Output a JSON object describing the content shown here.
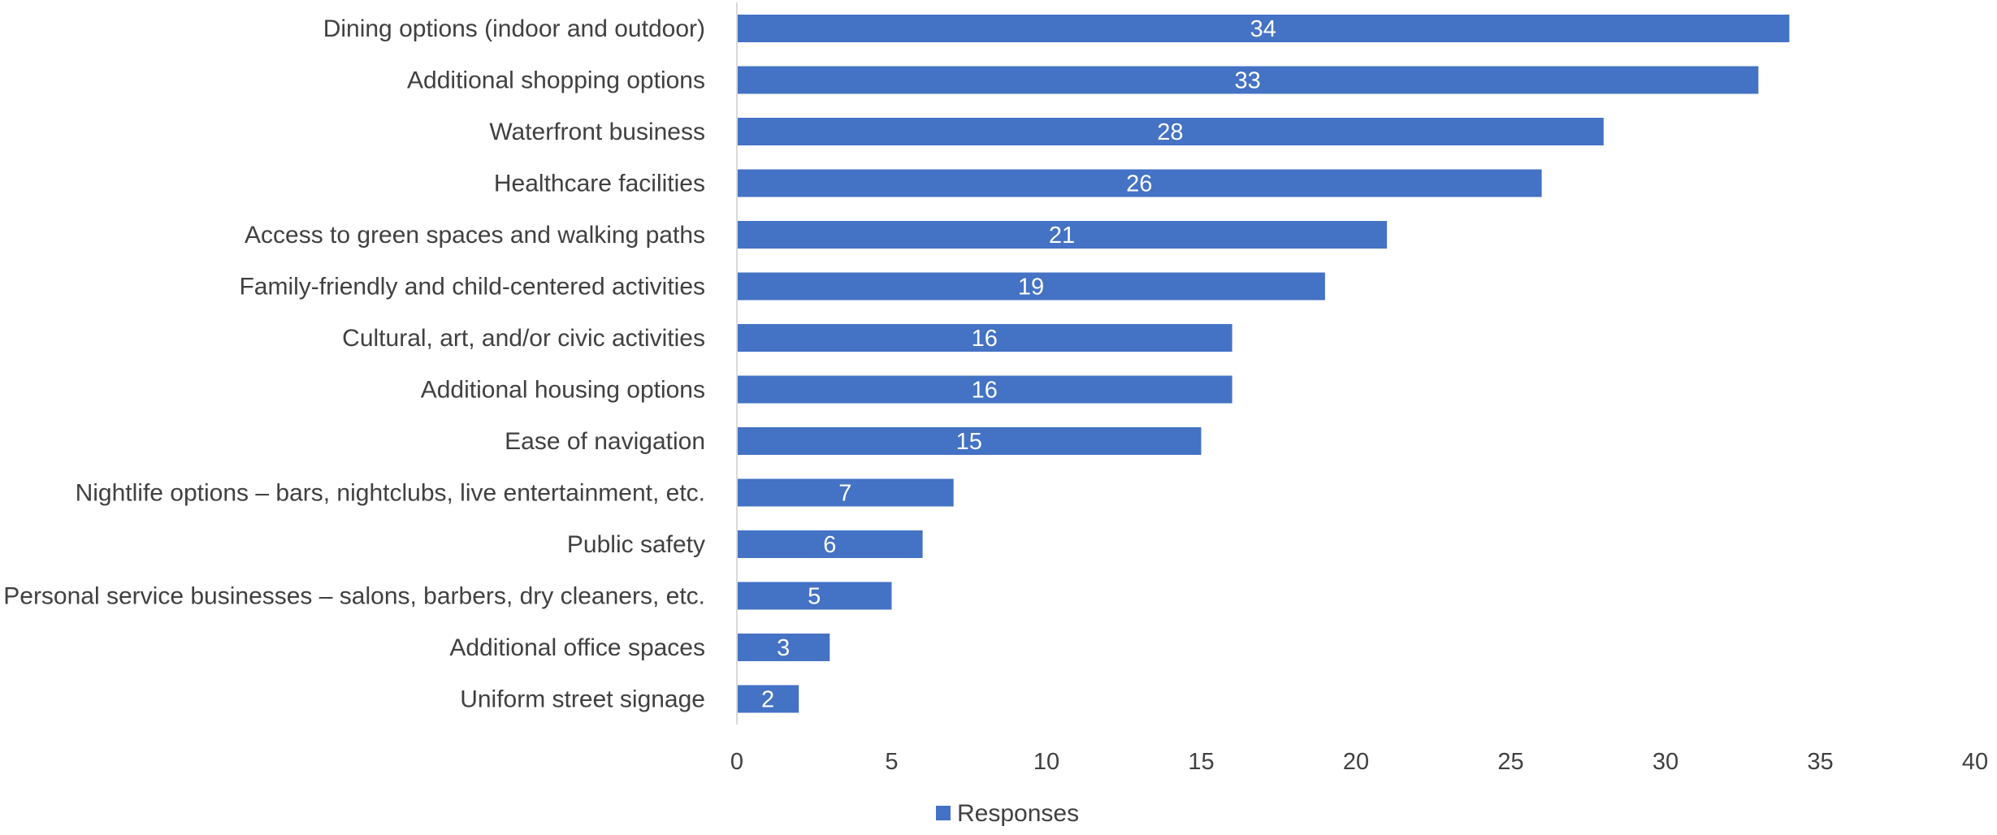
{
  "chart_data": {
    "type": "bar",
    "orientation": "horizontal",
    "categories": [
      "Dining options (indoor and outdoor)",
      "Additional shopping options",
      "Waterfront business",
      "Healthcare facilities",
      "Access to green spaces and walking paths",
      "Family-friendly and child-centered activities",
      "Cultural, art, and/or civic activities",
      "Additional housing options",
      "Ease of navigation",
      "Nightlife options – bars, nightclubs, live entertainment, etc.",
      "Public safety",
      "Personal service businesses – salons, barbers, dry cleaners, etc.",
      "Additional office spaces",
      "Uniform street signage"
    ],
    "series": [
      {
        "name": "Responses",
        "values": [
          34,
          33,
          28,
          26,
          21,
          19,
          16,
          16,
          15,
          7,
          6,
          5,
          3,
          2
        ],
        "color": "#4472c4"
      }
    ],
    "xlim": [
      0,
      40
    ],
    "xticks": [
      0,
      5,
      10,
      15,
      20,
      25,
      30,
      35,
      40
    ],
    "grid": false,
    "data_labels": true,
    "legend_position": "bottom",
    "title": "",
    "xlabel": "",
    "ylabel": ""
  }
}
